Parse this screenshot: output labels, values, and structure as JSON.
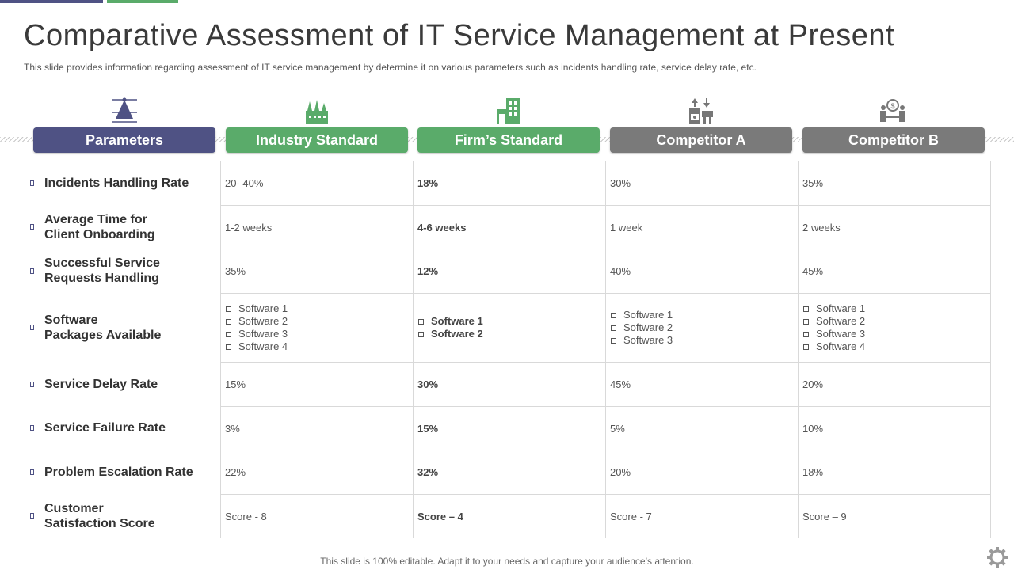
{
  "title": "Comparative Assessment of IT Service Management at Present",
  "subtitle": "This slide provides information regarding assessment of IT service management by determine it on various parameters such as incidents handling rate, service delay rate, etc.",
  "headers": [
    "Parameters",
    "Industry Standard",
    "Firm’s Standard",
    "Competitor A",
    "Competitor B"
  ],
  "icons": [
    "pyramid-chart-icon",
    "factory-icon",
    "building-icon",
    "market-exchange-icon",
    "meeting-people-icon"
  ],
  "colors": {
    "purple": "#4f5284",
    "green": "#5aab6a",
    "gray": "#7a7a7a"
  },
  "parameters": [
    "Incidents Handling Rate",
    "Average Time for\nClient Onboarding",
    "Successful Service\nRequests Handling",
    "Software\nPackages Available",
    "Service Delay Rate",
    "Service Failure Rate",
    "Problem Escalation Rate",
    "Customer\nSatisfaction Score"
  ],
  "rows": [
    [
      "20- 40%",
      "18%",
      "30%",
      "35%"
    ],
    [
      "1-2 weeks",
      "4-6 weeks",
      "1 week",
      "2 weeks"
    ],
    [
      "35%",
      "12%",
      "40%",
      "45%"
    ],
    [
      [
        "Software 1",
        "Software 2",
        "Software 3",
        "Software 4"
      ],
      [
        "Software 1",
        "Software 2"
      ],
      [
        "Software 1",
        "Software 2",
        "Software 3"
      ],
      [
        "Software 1",
        "Software 2",
        "Software 3",
        "Software 4"
      ]
    ],
    [
      "15%",
      "30%",
      "45%",
      "20%"
    ],
    [
      "3%",
      "15%",
      "5%",
      "10%"
    ],
    [
      "22%",
      "32%",
      "20%",
      "18%"
    ],
    [
      "Score - 8",
      "Score – 4",
      "Score - 7",
      "Score – 9"
    ]
  ],
  "footer": "This slide is 100% editable. Adapt it to your needs and capture your audience’s attention."
}
